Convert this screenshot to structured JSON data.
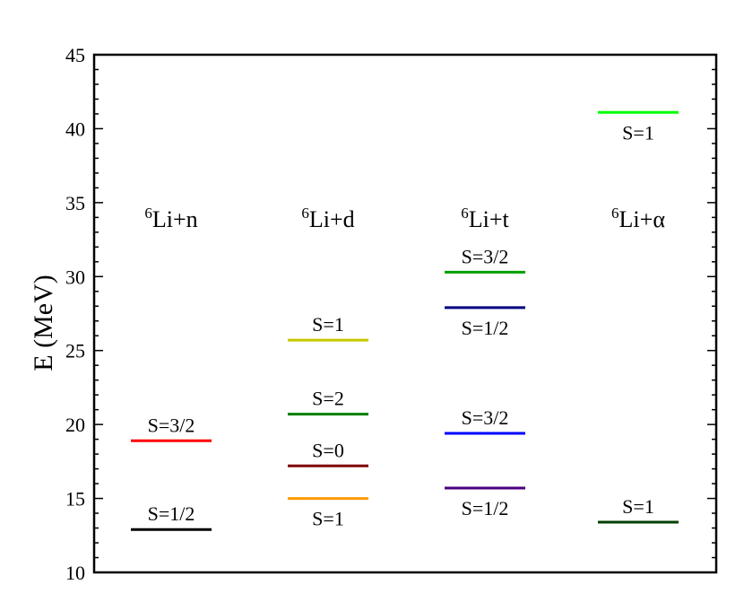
{
  "chart_data": {
    "type": "level-diagram",
    "ylabel": "E (MeV)",
    "ylim": [
      10,
      45
    ],
    "yticks": [
      "10",
      "15",
      "20",
      "25",
      "30",
      "35",
      "40",
      "45"
    ],
    "groups": [
      {
        "label": "6Li+n",
        "sup": "6",
        "base": "Li+n",
        "levels": [
          {
            "label": "S=3/2",
            "energy": 18.9,
            "color": "#ff0000",
            "label_pos": "above"
          },
          {
            "label": "S=1/2",
            "energy": 12.9,
            "color": "#000000",
            "label_pos": "above"
          }
        ]
      },
      {
        "label": "6Li+d",
        "sup": "6",
        "base": "Li+d",
        "levels": [
          {
            "label": "S=1",
            "energy": 25.7,
            "color": "#c8c800",
            "label_pos": "above"
          },
          {
            "label": "S=2",
            "energy": 20.7,
            "color": "#008000",
            "label_pos": "above"
          },
          {
            "label": "S=0",
            "energy": 17.2,
            "color": "#800000",
            "label_pos": "above"
          },
          {
            "label": "S=1",
            "energy": 15.0,
            "color": "#ff9900",
            "label_pos": "below"
          }
        ]
      },
      {
        "label": "6Li+t",
        "sup": "6",
        "base": "Li+t",
        "levels": [
          {
            "label": "S=3/2",
            "energy": 30.3,
            "color": "#00a000",
            "label_pos": "above"
          },
          {
            "label": "S=1/2",
            "energy": 27.9,
            "color": "#000080",
            "label_pos": "below"
          },
          {
            "label": "S=3/2",
            "energy": 19.4,
            "color": "#0000ff",
            "label_pos": "above"
          },
          {
            "label": "S=1/2",
            "energy": 15.7,
            "color": "#4b0082",
            "label_pos": "below"
          }
        ]
      },
      {
        "label": "6Li+α",
        "sup": "6",
        "base": "Li+α",
        "levels": [
          {
            "label": "S=1",
            "energy": 41.1,
            "color": "#00ff00",
            "label_pos": "below"
          },
          {
            "label": "S=1",
            "energy": 13.4,
            "color": "#004000",
            "label_pos": "above"
          }
        ]
      }
    ]
  }
}
